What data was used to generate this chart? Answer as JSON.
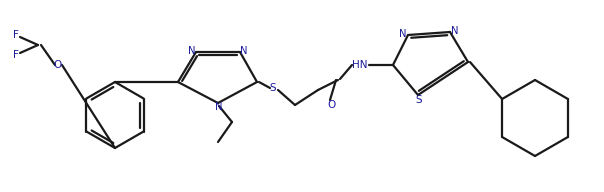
{
  "bg_color": "#ffffff",
  "line_color": "#1a1a1a",
  "line_width": 1.6,
  "text_color": "#1a1a9c",
  "figsize": [
    6.04,
    1.92
  ],
  "dpi": 100,
  "xlim": [
    0,
    604
  ],
  "ylim": [
    0,
    192
  ]
}
